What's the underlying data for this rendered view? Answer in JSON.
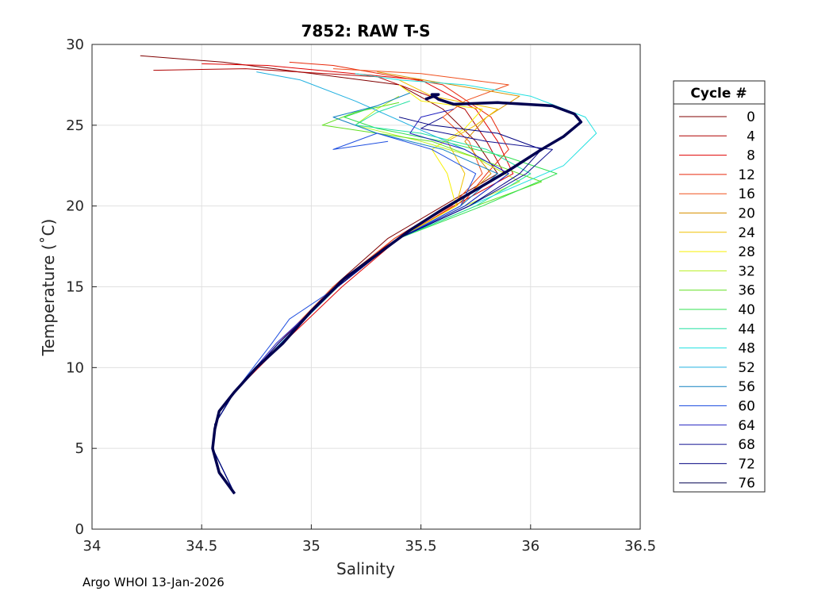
{
  "chart_data": {
    "type": "line",
    "title": "7852: RAW T-S",
    "xlabel": "Salinity",
    "ylabel": "Temperature (˚C)",
    "xlim": [
      34,
      36.5
    ],
    "ylim": [
      0,
      30
    ],
    "xticks": [
      34,
      34.5,
      35,
      35.5,
      36,
      36.5
    ],
    "xtick_labels": [
      "34",
      "34.5",
      "35",
      "35.5",
      "36",
      "36.5"
    ],
    "yticks": [
      0,
      5,
      10,
      15,
      20,
      25,
      30
    ],
    "ytick_labels": [
      "0",
      "5",
      "10",
      "15",
      "20",
      "25",
      "30"
    ],
    "grid": true,
    "legend": {
      "title": "Cycle #",
      "position": "outside-right",
      "entries": [
        {
          "label": "0",
          "color": "#800000"
        },
        {
          "label": "4",
          "color": "#b00000"
        },
        {
          "label": "8",
          "color": "#e00000"
        },
        {
          "label": "12",
          "color": "#e8280a"
        },
        {
          "label": "16",
          "color": "#f0501e"
        },
        {
          "label": "20",
          "color": "#d89000"
        },
        {
          "label": "24",
          "color": "#f0c000"
        },
        {
          "label": "28",
          "color": "#f8f000"
        },
        {
          "label": "32",
          "color": "#b8f020"
        },
        {
          "label": "36",
          "color": "#60e020"
        },
        {
          "label": "40",
          "color": "#30e050"
        },
        {
          "label": "44",
          "color": "#20e0a0"
        },
        {
          "label": "48",
          "color": "#20e0e0"
        },
        {
          "label": "52",
          "color": "#20b0e0"
        },
        {
          "label": "56",
          "color": "#1080c0"
        },
        {
          "label": "60",
          "color": "#2050e0"
        },
        {
          "label": "64",
          "color": "#2020c0"
        },
        {
          "label": "68",
          "color": "#101090"
        },
        {
          "label": "72",
          "color": "#000080"
        },
        {
          "label": "76",
          "color": "#000050"
        }
      ]
    },
    "series": [
      {
        "name": "0",
        "color": "#800000",
        "s": [
          34.65,
          34.55,
          34.56,
          34.65,
          34.85,
          35.1,
          35.35,
          35.6,
          35.85,
          35.75,
          35.6,
          35.4,
          34.6,
          34.22
        ],
        "t": [
          2.2,
          5,
          6.5,
          8.5,
          11.5,
          15,
          18,
          20,
          22,
          24,
          26,
          27.5,
          28.9,
          29.3
        ]
      },
      {
        "name": "4",
        "color": "#b00000",
        "s": [
          34.65,
          34.55,
          34.56,
          34.65,
          34.86,
          35.12,
          35.38,
          35.62,
          35.88,
          35.8,
          35.7,
          35.3,
          34.7,
          34.28
        ],
        "t": [
          2.2,
          5,
          6.5,
          8.5,
          11.5,
          15,
          18,
          20,
          22,
          24,
          26,
          28,
          28.5,
          28.4
        ]
      },
      {
        "name": "8",
        "color": "#e00000",
        "s": [
          34.65,
          34.55,
          34.56,
          34.65,
          34.87,
          35.14,
          35.4,
          35.65,
          35.92,
          35.85,
          35.75,
          35.5,
          34.8,
          34.5
        ],
        "t": [
          2.2,
          5,
          6.5,
          8.5,
          11.5,
          15,
          18,
          20,
          22,
          24,
          26,
          27.8,
          28.7,
          28.8
        ]
      },
      {
        "name": "12",
        "color": "#e8280a",
        "s": [
          34.65,
          34.55,
          34.56,
          34.65,
          34.86,
          35.12,
          35.4,
          35.68,
          35.8,
          35.9,
          35.82,
          35.6,
          35.1,
          34.9
        ],
        "t": [
          2.2,
          5,
          6.5,
          8.5,
          11.5,
          15,
          18,
          20,
          22,
          23.5,
          25.5,
          27.5,
          28.7,
          28.9
        ]
      },
      {
        "name": "16",
        "color": "#f0501e",
        "s": [
          34.65,
          34.55,
          34.56,
          34.65,
          34.85,
          35.1,
          35.38,
          35.64,
          35.78,
          35.72,
          35.6,
          35.7,
          35.9,
          35.5,
          35.1
        ],
        "t": [
          2.2,
          5,
          6.5,
          8.5,
          11.5,
          15,
          18,
          20,
          22,
          24,
          25.5,
          26.5,
          27.5,
          28.2,
          28.5
        ]
      },
      {
        "name": "20",
        "color": "#d89000",
        "s": [
          34.65,
          34.55,
          34.56,
          34.65,
          34.86,
          35.12,
          35.4,
          35.66,
          35.82,
          35.7,
          35.8,
          35.95,
          35.6,
          35.3
        ],
        "t": [
          2.2,
          5,
          6.5,
          8.5,
          11.5,
          15,
          18,
          20,
          22,
          24,
          25.5,
          26.8,
          27.6,
          28.3
        ]
      },
      {
        "name": "24",
        "color": "#f0c000",
        "s": [
          34.65,
          34.55,
          34.56,
          34.65,
          34.86,
          35.12,
          35.4,
          35.66,
          35.7,
          35.62,
          35.75,
          35.85,
          35.55,
          35.4
        ],
        "t": [
          2.2,
          5,
          6.5,
          8.5,
          11.5,
          15,
          18,
          20,
          22,
          24,
          25,
          26,
          26.8,
          27.8
        ]
      },
      {
        "name": "28",
        "color": "#f8f000",
        "s": [
          34.65,
          34.55,
          34.56,
          34.65,
          34.86,
          35.12,
          35.4,
          35.66,
          35.62,
          35.55,
          35.7,
          35.78,
          35.5,
          35.4
        ],
        "t": [
          2.2,
          5,
          6.5,
          8.5,
          11.5,
          15,
          18,
          20,
          22,
          23.5,
          24.8,
          26,
          26.5,
          27.5
        ]
      },
      {
        "name": "32",
        "color": "#b8f020",
        "s": [
          34.65,
          34.55,
          34.56,
          34.65,
          34.86,
          35.12,
          35.4,
          35.7,
          35.95,
          35.75,
          35.5,
          35.2,
          35.3,
          35.4
        ],
        "t": [
          2.2,
          5,
          6.5,
          8.5,
          11.5,
          15,
          18,
          20,
          21.5,
          23,
          24,
          25,
          26,
          26.8
        ]
      },
      {
        "name": "36",
        "color": "#60e020",
        "s": [
          34.65,
          34.55,
          34.56,
          34.65,
          34.86,
          35.12,
          35.4,
          35.75,
          36.05,
          35.85,
          35.55,
          35.05,
          35.2,
          35.4
        ],
        "t": [
          2.2,
          5,
          6.5,
          8.5,
          11.5,
          15,
          18,
          20,
          21.5,
          22.5,
          24,
          25,
          25.8,
          26.4
        ]
      },
      {
        "name": "40",
        "color": "#30e050",
        "s": [
          34.65,
          34.55,
          34.56,
          34.65,
          34.86,
          35.12,
          35.4,
          35.78,
          36.12,
          35.9,
          35.6,
          35.3,
          35.15,
          35.3
        ],
        "t": [
          2.2,
          5,
          6.5,
          8.5,
          11.5,
          15,
          18,
          20,
          22,
          23,
          24,
          24.8,
          25.5,
          26.2
        ]
      },
      {
        "name": "44",
        "color": "#20e0a0",
        "s": [
          34.65,
          34.55,
          34.56,
          34.65,
          34.86,
          35.12,
          35.4,
          35.75,
          36.0,
          35.8,
          35.5,
          35.2,
          35.3,
          35.45
        ],
        "t": [
          2.2,
          5,
          6.5,
          8.5,
          11.5,
          15,
          18,
          20,
          22,
          23.5,
          24.5,
          25,
          25.8,
          26.5
        ]
      },
      {
        "name": "48",
        "color": "#20e0e0",
        "s": [
          34.65,
          34.55,
          34.56,
          34.65,
          34.86,
          35.12,
          35.4,
          35.72,
          36.15,
          36.3,
          36.25,
          36.0,
          35.7,
          35.4,
          35.2
        ],
        "t": [
          2.2,
          5,
          6.5,
          8.5,
          11.5,
          15,
          18,
          20,
          22.5,
          24.5,
          25.5,
          26.8,
          27.5,
          27.8,
          28.2
        ]
      },
      {
        "name": "52",
        "color": "#20b0e0",
        "s": [
          34.65,
          34.55,
          34.56,
          34.65,
          34.86,
          35.12,
          35.4,
          35.7,
          35.9,
          35.7,
          35.45,
          35.2,
          34.95,
          34.75
        ],
        "t": [
          2.2,
          5,
          6.5,
          8.5,
          11.5,
          15,
          18,
          20,
          22,
          23.5,
          25,
          26.5,
          27.8,
          28.3
        ]
      },
      {
        "name": "56",
        "color": "#1080c0",
        "s": [
          34.65,
          34.55,
          34.56,
          34.65,
          34.86,
          35.12,
          35.4,
          35.68,
          35.85,
          35.6,
          35.3,
          35.1,
          35.3,
          35.45
        ],
        "t": [
          2.2,
          5,
          6.5,
          8.5,
          11.5,
          15,
          18,
          20,
          22,
          23.5,
          24.5,
          25.5,
          26.2,
          27
        ]
      },
      {
        "name": "60",
        "color": "#2050e0",
        "s": [
          34.65,
          34.55,
          34.56,
          34.65,
          34.82,
          34.9,
          35.12,
          35.4,
          35.68,
          35.75,
          35.55,
          35.3,
          35.1,
          35.35
        ],
        "t": [
          2.2,
          5,
          6.5,
          8.5,
          11.5,
          13,
          15,
          18,
          20,
          22,
          23.5,
          24.5,
          23.5,
          24
        ]
      },
      {
        "name": "64",
        "color": "#2020c0",
        "s": [
          34.65,
          34.55,
          34.56,
          34.65,
          34.84,
          35.12,
          35.4,
          35.7,
          35.9,
          35.7,
          35.45,
          35.5,
          35.65
        ],
        "t": [
          2.2,
          5,
          6.5,
          8.5,
          11.5,
          15,
          18,
          20,
          22,
          23.5,
          24.5,
          25.5,
          26
        ]
      },
      {
        "name": "68",
        "color": "#101090",
        "s": [
          34.65,
          34.55,
          34.56,
          34.65,
          34.85,
          35.12,
          35.4,
          35.72,
          35.98,
          36.1,
          35.8,
          35.5,
          35.6
        ],
        "t": [
          2.2,
          5,
          6.5,
          8.5,
          11.5,
          15,
          18,
          20,
          22,
          23.5,
          24,
          24.8,
          25.5
        ]
      },
      {
        "name": "72",
        "color": "#000080",
        "s": [
          34.65,
          34.55,
          34.56,
          34.65,
          34.85,
          35.12,
          35.4,
          35.72,
          35.95,
          36.05,
          35.85,
          35.55,
          35.4
        ],
        "t": [
          2.2,
          5,
          6.5,
          8.5,
          11.5,
          15,
          18,
          20,
          22,
          23.5,
          24.5,
          25,
          25.5
        ]
      },
      {
        "name": "76",
        "color": "#000050",
        "width": 3.5,
        "s": [
          34.65,
          34.58,
          34.55,
          34.56,
          34.58,
          34.65,
          34.75,
          34.87,
          35.0,
          35.15,
          35.3,
          35.45,
          35.6,
          35.75,
          35.9,
          36.05,
          36.15,
          36.23,
          36.2,
          36.1,
          35.85,
          35.65,
          35.58,
          35.55,
          35.58,
          35.52
        ],
        "t": [
          2.2,
          3.5,
          5,
          6.2,
          7.3,
          8.5,
          10,
          11.5,
          13.5,
          15.5,
          17,
          18.5,
          19.8,
          21,
          22.2,
          23.5,
          24.3,
          25.2,
          25.7,
          26.2,
          26.4,
          26.3,
          26.6,
          26.9,
          26.9,
          26.6
        ]
      }
    ]
  },
  "footer": {
    "text": "Argo WHOI 13-Jan-2026"
  }
}
